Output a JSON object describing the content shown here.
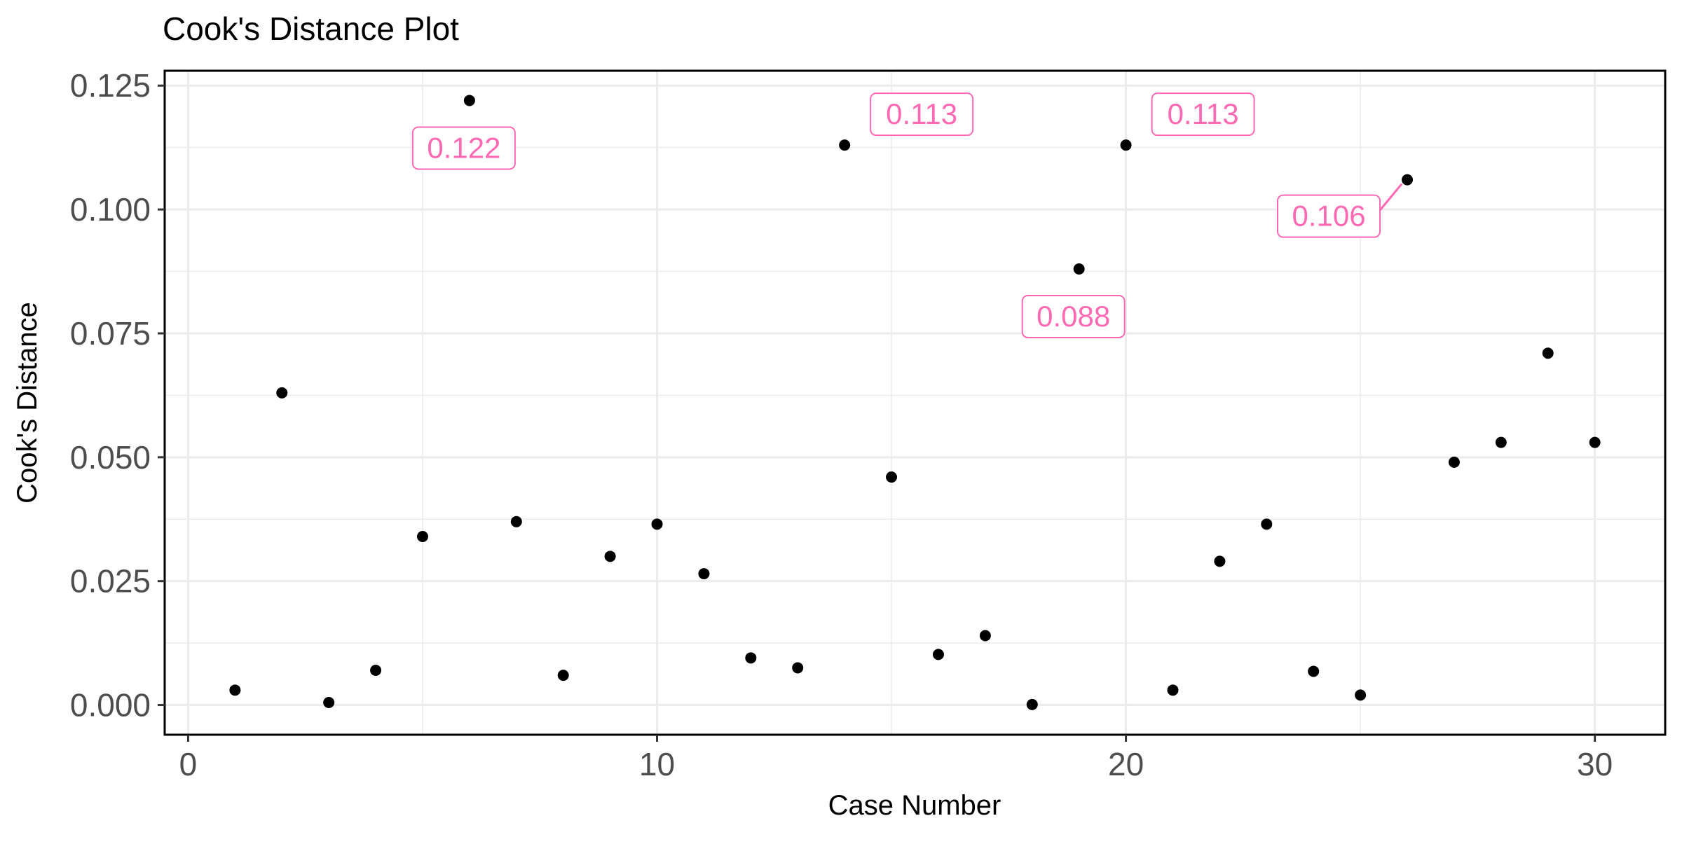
{
  "chart_data": {
    "type": "scatter",
    "title": "Cook's Distance Plot",
    "xlabel": "Case Number",
    "ylabel": "Cook's Distance",
    "xlim": [
      -0.5,
      31.5
    ],
    "ylim": [
      -0.006,
      0.128
    ],
    "x_ticks": [
      0,
      10,
      20,
      30
    ],
    "x_tick_labels": [
      "0",
      "10",
      "20",
      "30"
    ],
    "y_ticks": [
      0,
      0.025,
      0.05,
      0.075,
      0.1,
      0.125
    ],
    "y_tick_labels": [
      "0.000",
      "0.025",
      "0.050",
      "0.075",
      "0.100",
      "0.125"
    ],
    "grid": true,
    "x": [
      1,
      2,
      3,
      4,
      5,
      6,
      7,
      8,
      9,
      10,
      11,
      12,
      13,
      14,
      15,
      16,
      17,
      18,
      19,
      20,
      21,
      22,
      23,
      24,
      25,
      26,
      27,
      28,
      29,
      30
    ],
    "y": [
      0.003,
      0.063,
      0.0005,
      0.007,
      0.034,
      0.122,
      0.037,
      0.006,
      0.03,
      0.0365,
      0.0265,
      0.0095,
      0.0075,
      0.113,
      0.046,
      0.0102,
      0.014,
      0.0001,
      0.088,
      0.113,
      0.003,
      0.029,
      0.0365,
      0.0068,
      0.002,
      0.106,
      0.049,
      0.053,
      0.071,
      0.053
    ],
    "annotations": [
      {
        "x": 6,
        "y": 0.122,
        "label": "0.122",
        "position": "below-left"
      },
      {
        "x": 14,
        "y": 0.113,
        "label": "0.113",
        "position": "upper-right"
      },
      {
        "x": 19,
        "y": 0.088,
        "label": "0.088",
        "position": "below-left"
      },
      {
        "x": 20,
        "y": 0.113,
        "label": "0.113",
        "position": "upper-right"
      },
      {
        "x": 26,
        "y": 0.106,
        "label": "0.106",
        "position": "below-left"
      }
    ],
    "colors": {
      "point": "#000000",
      "annotation": "#ff69b4",
      "grid": "#ebebeb",
      "axis_text": "#4d4d4d"
    }
  }
}
